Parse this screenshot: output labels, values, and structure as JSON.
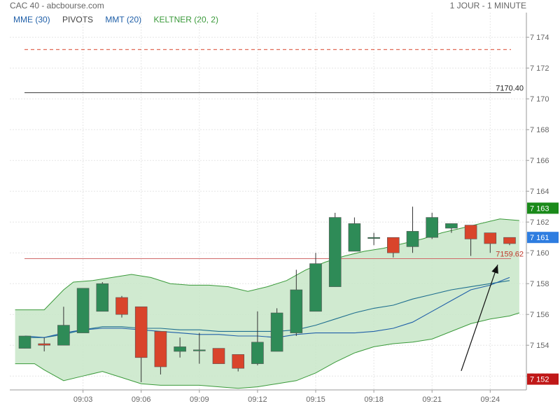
{
  "header": {
    "title": "CAC 40 - abcbourse.com",
    "period": "1 JOUR - 1 MINUTE"
  },
  "legend": [
    {
      "label": "MME (30)",
      "color": "#1f5fa8"
    },
    {
      "label": "PIVOTS",
      "color": "#444444"
    },
    {
      "label": "MMT (20)",
      "color": "#1f5fa8"
    },
    {
      "label": "KELTNER (20, 2)",
      "color": "#3a9a3a"
    }
  ],
  "colors": {
    "up": "#2e8b57",
    "down": "#d9442b",
    "band_fill": "#c8e6c8",
    "band_line": "#3a9a3a",
    "mme": "#1f6f8f",
    "mmt": "#1f5fa8"
  },
  "chart_data": {
    "type": "candlestick",
    "y_range": [
      7151.1,
      7175.6
    ],
    "y_ticks": [
      7152,
      7154,
      7156,
      7158,
      7160,
      7162,
      7164,
      7166,
      7168,
      7170,
      7172,
      7174
    ],
    "y_tick_labels": [
      "7 152",
      "7 154",
      "7 156",
      "7 158",
      "7 160",
      "7 162",
      "7 164",
      "7 166",
      "7 168",
      "7 170",
      "7 172",
      "7 174"
    ],
    "x_ticks": [
      {
        "label": "09:03",
        "index": 3
      },
      {
        "label": "09:06",
        "index": 6
      },
      {
        "label": "09:09",
        "index": 9
      },
      {
        "label": "09:12",
        "index": 12
      },
      {
        "label": "09:15",
        "index": 15
      },
      {
        "label": "09:18",
        "index": 18
      },
      {
        "label": "09:21",
        "index": 21
      },
      {
        "label": "09:24",
        "index": 24
      }
    ],
    "candles": [
      {
        "o": 7153.8,
        "h": 7154.6,
        "l": 7153.8,
        "c": 7154.6
      },
      {
        "o": 7154.1,
        "h": 7154.5,
        "l": 7153.6,
        "c": 7154.0
      },
      {
        "o": 7154.0,
        "h": 7156.5,
        "l": 7154.0,
        "c": 7155.3
      },
      {
        "o": 7154.8,
        "h": 7157.7,
        "l": 7154.8,
        "c": 7157.7
      },
      {
        "o": 7156.2,
        "h": 7158.1,
        "l": 7156.2,
        "c": 7158.0
      },
      {
        "o": 7157.1,
        "h": 7157.2,
        "l": 7155.8,
        "c": 7156.0
      },
      {
        "o": 7156.5,
        "h": 7156.5,
        "l": 7151.6,
        "c": 7153.2
      },
      {
        "o": 7154.9,
        "h": 7154.9,
        "l": 7152.1,
        "c": 7152.6
      },
      {
        "o": 7153.6,
        "h": 7154.5,
        "l": 7153.2,
        "c": 7153.9
      },
      {
        "o": 7153.7,
        "h": 7154.8,
        "l": 7152.8,
        "c": 7153.7
      },
      {
        "o": 7153.8,
        "h": 7153.8,
        "l": 7152.8,
        "c": 7152.8
      },
      {
        "o": 7153.4,
        "h": 7153.4,
        "l": 7152.3,
        "c": 7152.5
      },
      {
        "o": 7152.8,
        "h": 7156.2,
        "l": 7152.7,
        "c": 7154.2
      },
      {
        "o": 7153.6,
        "h": 7156.4,
        "l": 7153.6,
        "c": 7156.1
      },
      {
        "o": 7154.8,
        "h": 7158.9,
        "l": 7154.6,
        "c": 7157.6
      },
      {
        "o": 7156.2,
        "h": 7160.0,
        "l": 7156.2,
        "c": 7159.3
      },
      {
        "o": 7157.8,
        "h": 7162.6,
        "l": 7157.8,
        "c": 7162.3
      },
      {
        "o": 7160.1,
        "h": 7162.3,
        "l": 7160.1,
        "c": 7161.9
      },
      {
        "o": 7161.0,
        "h": 7161.3,
        "l": 7160.5,
        "c": 7161.0
      },
      {
        "o": 7161.0,
        "h": 7161.0,
        "l": 7159.7,
        "c": 7160.0
      },
      {
        "o": 7160.4,
        "h": 7163.0,
        "l": 7160.0,
        "c": 7161.4
      },
      {
        "o": 7161.0,
        "h": 7162.6,
        "l": 7160.9,
        "c": 7162.3
      },
      {
        "o": 7161.6,
        "h": 7161.9,
        "l": 7161.3,
        "c": 7161.9
      },
      {
        "o": 7161.8,
        "h": 7161.8,
        "l": 7159.8,
        "c": 7160.9
      },
      {
        "o": 7161.3,
        "h": 7161.3,
        "l": 7160.0,
        "c": 7160.6
      },
      {
        "o": 7161.0,
        "h": 7161.0,
        "l": 7160.5,
        "c": 7160.6
      }
    ],
    "keltner_upper": [
      [
        -0.5,
        7156.3
      ],
      [
        0.5,
        7156.3
      ],
      [
        1.0,
        7156.3
      ],
      [
        2.0,
        7157.6
      ],
      [
        2.5,
        7158.1
      ],
      [
        3.5,
        7158.2
      ],
      [
        4.5,
        7158.4
      ],
      [
        5.5,
        7158.6
      ],
      [
        6.5,
        7158.4
      ],
      [
        7.5,
        7158.0
      ],
      [
        8.5,
        7157.9
      ],
      [
        9.5,
        7157.9
      ],
      [
        10.5,
        7157.8
      ],
      [
        11.5,
        7157.5
      ],
      [
        12.5,
        7157.8
      ],
      [
        13.5,
        7158.2
      ],
      [
        14.5,
        7158.9
      ],
      [
        15.5,
        7159.4
      ],
      [
        16.5,
        7159.8
      ],
      [
        17.5,
        7160.1
      ],
      [
        18.5,
        7160.3
      ],
      [
        19.5,
        7160.6
      ],
      [
        20.5,
        7160.9
      ],
      [
        21.5,
        7161.3
      ],
      [
        22.5,
        7161.6
      ],
      [
        23.5,
        7161.9
      ],
      [
        24.5,
        7162.2
      ],
      [
        25.5,
        7162.1
      ]
    ],
    "keltner_lower": [
      [
        -0.5,
        7152.8
      ],
      [
        0.5,
        7152.8
      ],
      [
        1.0,
        7152.4
      ],
      [
        2.0,
        7151.7
      ],
      [
        3.0,
        7152.0
      ],
      [
        4.0,
        7152.3
      ],
      [
        5.0,
        7151.9
      ],
      [
        6.0,
        7151.5
      ],
      [
        7.0,
        7151.4
      ],
      [
        8.0,
        7151.4
      ],
      [
        9.0,
        7151.4
      ],
      [
        10.0,
        7151.3
      ],
      [
        11.0,
        7151.2
      ],
      [
        12.0,
        7151.3
      ],
      [
        13.0,
        7151.5
      ],
      [
        14.0,
        7151.7
      ],
      [
        15.0,
        7152.2
      ],
      [
        16.0,
        7152.9
      ],
      [
        17.0,
        7153.5
      ],
      [
        18.0,
        7153.9
      ],
      [
        19.0,
        7154.1
      ],
      [
        20.0,
        7154.2
      ],
      [
        21.0,
        7154.4
      ],
      [
        22.0,
        7154.9
      ],
      [
        23.0,
        7155.4
      ],
      [
        24.0,
        7155.7
      ],
      [
        25.0,
        7155.9
      ],
      [
        25.5,
        7156.1
      ]
    ],
    "mme_30": [
      [
        0,
        7154.5
      ],
      [
        1,
        7154.5
      ],
      [
        2,
        7154.7
      ],
      [
        3,
        7155.0
      ],
      [
        4,
        7155.2
      ],
      [
        5,
        7155.2
      ],
      [
        6,
        7155.1
      ],
      [
        7,
        7155.1
      ],
      [
        8,
        7155.0
      ],
      [
        9,
        7155.0
      ],
      [
        10,
        7154.9
      ],
      [
        11,
        7154.9
      ],
      [
        12,
        7154.9
      ],
      [
        13,
        7154.9
      ],
      [
        14,
        7155.0
      ],
      [
        15,
        7155.3
      ],
      [
        16,
        7155.7
      ],
      [
        17,
        7156.1
      ],
      [
        18,
        7156.4
      ],
      [
        19,
        7156.6
      ],
      [
        20,
        7157.0
      ],
      [
        21,
        7157.3
      ],
      [
        22,
        7157.6
      ],
      [
        23,
        7157.8
      ],
      [
        24,
        7158.0
      ],
      [
        25,
        7158.2
      ]
    ],
    "mmt_20": [
      [
        0,
        7154.6
      ],
      [
        1,
        7154.5
      ],
      [
        2,
        7154.8
      ],
      [
        3,
        7155.0
      ],
      [
        4,
        7155.1
      ],
      [
        5,
        7155.1
      ],
      [
        6,
        7155.0
      ],
      [
        7,
        7154.9
      ],
      [
        8,
        7154.8
      ],
      [
        9,
        7154.7
      ],
      [
        10,
        7154.7
      ],
      [
        11,
        7154.6
      ],
      [
        12,
        7154.6
      ],
      [
        13,
        7154.5
      ],
      [
        14,
        7154.7
      ],
      [
        15,
        7154.8
      ],
      [
        16,
        7154.8
      ],
      [
        17,
        7154.8
      ],
      [
        18,
        7154.9
      ],
      [
        19,
        7155.1
      ],
      [
        20,
        7155.5
      ],
      [
        21,
        7156.2
      ],
      [
        22,
        7156.9
      ],
      [
        23,
        7157.6
      ],
      [
        24,
        7157.9
      ],
      [
        25,
        7158.4
      ]
    ],
    "pivot_lines": [
      {
        "value": 7173.2,
        "style": "dashed",
        "color": "#d9442b",
        "label": ""
      },
      {
        "value": 7170.4,
        "style": "solid",
        "color": "#333333",
        "label": "7170.40"
      },
      {
        "value": 7159.62,
        "style": "solid",
        "color": "#d06a6a",
        "label": "7159.62"
      }
    ],
    "trend_arrow": {
      "from": [
        22.0,
        7153.2
      ],
      "to": [
        25.0,
        7158.0
      ]
    },
    "price_tags": [
      {
        "label": "7 163",
        "value": 7162.9,
        "color": "#1a8a1a"
      },
      {
        "label": "7 161",
        "value": 7161.0,
        "color": "#2e7de0"
      },
      {
        "label": "7 152",
        "value": 7151.8,
        "color": "#c01818"
      }
    ]
  }
}
